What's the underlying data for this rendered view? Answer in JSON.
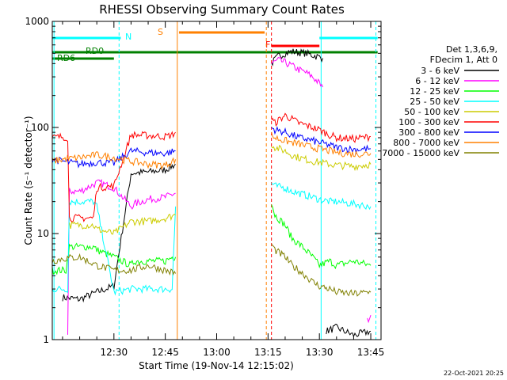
{
  "chart_data": {
    "type": "line",
    "title": "RHESSI Observing Summary Count Rates",
    "xlabel": "Start Time (19-Nov-14 12:15:02)",
    "ylabel": "Count Rate (s⁻¹ detector⁻¹)",
    "y_scale": "log",
    "xlim_minutes": [
      12.0,
      108.0
    ],
    "ylim": [
      1,
      1000
    ],
    "x_ticks": [
      {
        "minutes": 30,
        "label": "12:30"
      },
      {
        "minutes": 45,
        "label": "12:45"
      },
      {
        "minutes": 60,
        "label": "13:00"
      },
      {
        "minutes": 75,
        "label": "13:15"
      },
      {
        "minutes": 90,
        "label": "13:30"
      },
      {
        "minutes": 105,
        "label": "13:45"
      }
    ],
    "y_ticks": [
      {
        "value": 1,
        "label": "1"
      },
      {
        "value": 10,
        "label": "10"
      },
      {
        "value": 100,
        "label": "100"
      },
      {
        "value": 1000,
        "label": "1000"
      }
    ],
    "legend_header": [
      "Det 1,3,6,9,",
      "FDecim 1, Att 0"
    ],
    "series": [
      {
        "name": "3 - 6 keV",
        "color": "#000000",
        "segments": [
          {
            "x": [
              15,
              20,
              25,
              30,
              35,
              40,
              45,
              48
            ],
            "y": [
              2.5,
              2.4,
              2.8,
              3.2,
              37,
              38,
              40,
              45
            ]
          },
          {
            "x": [
              76,
              78,
              80,
              82,
              84,
              86,
              88,
              90,
              91
            ],
            "y": [
              400,
              470,
              500,
              520,
              510,
              500,
              480,
              460,
              450
            ]
          },
          {
            "x": [
              92,
              95,
              100,
              105
            ],
            "y": [
              1.2,
              1.3,
              1.1,
              1.2
            ]
          }
        ]
      },
      {
        "name": "6 - 12 keV",
        "color": "#ff00ff",
        "segments": [
          {
            "x": [
              16.5,
              17,
              20,
              25,
              26,
              30,
              35,
              36,
              40,
              45,
              48
            ],
            "y": [
              1.1,
              25,
              25,
              30,
              30,
              27,
              18,
              19,
              21,
              22,
              24
            ]
          },
          {
            "x": [
              76,
              78,
              80,
              82,
              84,
              86,
              88,
              90,
              91
            ],
            "y": [
              400,
              430,
              410,
              380,
              350,
              330,
              300,
              260,
              240
            ]
          },
          {
            "x": [
              104,
              105
            ],
            "y": [
              1.5,
              1.7
            ]
          }
        ]
      },
      {
        "name": "12 - 25 keV",
        "color": "#00ff00",
        "segments": [
          {
            "x": [
              12,
              16,
              17,
              24,
              25,
              30,
              35,
              36,
              40,
              45,
              47,
              48
            ],
            "y": [
              4.5,
              4.5,
              7.5,
              7.5,
              7,
              6,
              5,
              5.5,
              5.5,
              5.5,
              6,
              6
            ]
          },
          {
            "x": [
              76,
              77,
              80,
              82,
              84,
              86,
              88,
              90,
              93,
              95,
              100,
              105
            ],
            "y": [
              20,
              15,
              12,
              9,
              8,
              7,
              6,
              5,
              5.5,
              5,
              5.5,
              5
            ]
          }
        ]
      },
      {
        "name": "25 - 50 keV",
        "color": "#00ffff",
        "segments": [
          {
            "x": [
              12,
              15,
              16.5,
              17,
              24,
              25,
              30,
              35,
              40,
              45,
              47,
              48
            ],
            "y": [
              3,
              3,
              3,
              20,
              20,
              18,
              2.8,
              3,
              3,
              3,
              3,
              18
            ]
          },
          {
            "x": [
              76,
              77,
              80,
              82,
              84,
              86,
              88,
              90,
              93,
              95,
              100,
              105
            ],
            "y": [
              30,
              28,
              27,
              25,
              24,
              23,
              22,
              21,
              20,
              20,
              19,
              18
            ]
          }
        ]
      },
      {
        "name": "50 - 100 keV",
        "color": "#cccc00",
        "segments": [
          {
            "x": [
              17,
              24,
              25,
              30,
              35,
              40,
              45,
              48
            ],
            "y": [
              12,
              12,
              11,
              10,
              13,
              13,
              14,
              15
            ]
          },
          {
            "x": [
              76,
              77,
              80,
              82,
              84,
              86,
              88,
              90,
              93,
              95,
              100,
              105
            ],
            "y": [
              70,
              65,
              60,
              55,
              52,
              50,
              48,
              47,
              45,
              44,
              43,
              45
            ]
          }
        ]
      },
      {
        "name": "100 - 300 keV",
        "color": "#ff0000",
        "segments": [
          {
            "x": [
              12,
              15,
              16.5,
              17,
              24,
              25,
              30,
              35,
              36,
              40,
              45,
              47,
              48
            ],
            "y": [
              80,
              82,
              80,
              14,
              14,
              27,
              28,
              85,
              85,
              84,
              82,
              85,
              90
            ]
          },
          {
            "x": [
              76,
              77,
              80,
              82,
              84,
              86,
              88,
              90,
              93,
              95,
              100,
              105
            ],
            "y": [
              120,
              110,
              130,
              120,
              110,
              105,
              100,
              95,
              85,
              80,
              78,
              82
            ]
          }
        ]
      },
      {
        "name": "300 - 800 keV",
        "color": "#0000ff",
        "segments": [
          {
            "x": [
              12,
              15,
              20,
              25,
              30,
              35,
              40,
              45,
              48
            ],
            "y": [
              50,
              48,
              45,
              47,
              46,
              60,
              58,
              57,
              60
            ]
          },
          {
            "x": [
              76,
              77,
              80,
              82,
              84,
              86,
              88,
              90,
              93,
              95,
              100,
              105
            ],
            "y": [
              100,
              95,
              90,
              85,
              80,
              78,
              75,
              72,
              68,
              65,
              62,
              63
            ]
          }
        ]
      },
      {
        "name": "800 - 7000 keV",
        "color": "#ff8000",
        "segments": [
          {
            "x": [
              12,
              15,
              20,
              25,
              30,
              35,
              40,
              45,
              48
            ],
            "y": [
              48,
              50,
              52,
              55,
              52,
              48,
              45,
              44,
              50
            ]
          },
          {
            "x": [
              76,
              77,
              80,
              82,
              84,
              86,
              88,
              90,
              93,
              95,
              100,
              105
            ],
            "y": [
              85,
              80,
              75,
              72,
              70,
              67,
              65,
              63,
              60,
              58,
              56,
              57
            ]
          }
        ]
      },
      {
        "name": "7000 - 15000 keV",
        "color": "#808000",
        "segments": [
          {
            "x": [
              12,
              15,
              20,
              25,
              30,
              35,
              40,
              45,
              48
            ],
            "y": [
              5.5,
              5.8,
              6,
              5,
              4.5,
              4.5,
              5,
              4.5,
              4.2
            ]
          },
          {
            "x": [
              76,
              77,
              80,
              82,
              84,
              86,
              88,
              90,
              93,
              95,
              100,
              105
            ],
            "y": [
              8,
              7,
              6,
              5,
              4.5,
              4,
              3.5,
              3.2,
              3,
              2.8,
              2.7,
              2.8
            ]
          }
        ]
      }
    ],
    "state_bars": [
      {
        "label": "N",
        "color": "#00ffff",
        "x": [
          [
            12,
            32
          ],
          [
            90,
            107
          ]
        ]
      },
      {
        "label": "S",
        "color": "#ff8000",
        "x": [
          [
            49,
            74
          ]
        ]
      },
      {
        "label": "F",
        "color": "#ff0000",
        "x": [
          [
            76,
            90
          ]
        ]
      },
      {
        "label": "RD0",
        "color": "#008000",
        "x": [
          [
            12,
            107
          ]
        ]
      },
      {
        "label": "RD6",
        "color": "#008000",
        "x": [
          [
            12,
            30
          ]
        ]
      }
    ],
    "vertical_markers": [
      {
        "minutes": 12.5,
        "color": "#00ffff",
        "style": "solid"
      },
      {
        "minutes": 31.5,
        "color": "#00ffff",
        "style": "dashed"
      },
      {
        "minutes": 48.5,
        "color": "#ff8000",
        "style": "solid"
      },
      {
        "minutes": 74.5,
        "color": "#ff8000",
        "style": "dashed"
      },
      {
        "minutes": 76.0,
        "color": "#ff0000",
        "style": "dashed"
      },
      {
        "minutes": 90.5,
        "color": "#00ffff",
        "style": "solid"
      },
      {
        "minutes": 106.5,
        "color": "#00ffff",
        "style": "dashed"
      }
    ]
  },
  "footer_date": "22-Oct-2021 20:25"
}
